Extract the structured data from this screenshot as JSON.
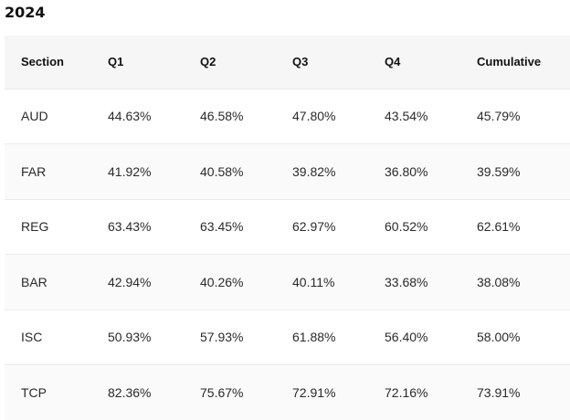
{
  "title": "2024",
  "table": {
    "headers": [
      "Section",
      "Q1",
      "Q2",
      "Q3",
      "Q4",
      "Cumulative"
    ],
    "rows": [
      [
        "AUD",
        "44.63%",
        "46.58%",
        "47.80%",
        "43.54%",
        "45.79%"
      ],
      [
        "FAR",
        "41.92%",
        "40.58%",
        "39.82%",
        "36.80%",
        "39.59%"
      ],
      [
        "REG",
        "63.43%",
        "63.45%",
        "62.97%",
        "60.52%",
        "62.61%"
      ],
      [
        "BAR",
        "42.94%",
        "40.26%",
        "40.11%",
        "33.68%",
        "38.08%"
      ],
      [
        "ISC",
        "50.93%",
        "57.93%",
        "61.88%",
        "56.40%",
        "58.00%"
      ],
      [
        "TCP",
        "82.36%",
        "75.67%",
        "72.91%",
        "72.16%",
        "73.91%"
      ]
    ]
  }
}
